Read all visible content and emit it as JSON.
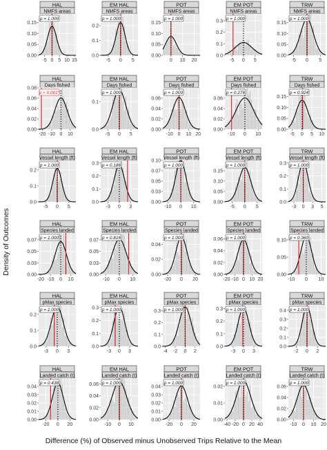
{
  "figure": {
    "ylabel": "Density of Outcomes",
    "xlabel": "Difference (%) of Observed minus Unobserved Trips Relative to the Mean"
  },
  "chart_data": [
    {
      "type": "histogram-density",
      "gear": "HAL",
      "variable": "NMFS areas",
      "pval": "p = 1.000",
      "xticks": [
        -5,
        0,
        5,
        10,
        15
      ],
      "yticks": [
        0.0,
        0.05,
        0.1,
        0.15
      ],
      "xlim": [
        -9,
        16
      ],
      "ylim": [
        0,
        0.19
      ],
      "mean": 0,
      "sd": 3.0,
      "observed": 0
    },
    {
      "type": "histogram-density",
      "gear": "EM HAL",
      "variable": "NMFS areas",
      "pval": "p = 1.000",
      "xticks": [
        -5,
        0,
        5
      ],
      "yticks": [
        0.0,
        0.1,
        0.2
      ],
      "xlim": [
        -8,
        7
      ],
      "ylim": [
        0,
        0.28
      ],
      "mean": 0,
      "sd": 1.8,
      "observed": 0
    },
    {
      "type": "histogram-density",
      "gear": "POT",
      "variable": "NMFS areas",
      "pval": "p = 1.000",
      "xticks": [
        0,
        10,
        20
      ],
      "yticks": [
        0.0,
        0.05,
        0.1,
        0.15
      ],
      "xlim": [
        -7,
        25
      ],
      "ylim": [
        0,
        0.19
      ],
      "mean": 0,
      "sd": 4.6,
      "observed": 0
    },
    {
      "type": "histogram-density",
      "gear": "EM POT",
      "variable": "NMFS areas",
      "pval": "p = 1.000",
      "xticks": [
        -5,
        0,
        5
      ],
      "yticks": [
        0.0,
        0.1,
        0.2,
        0.3
      ],
      "xlim": [
        -8,
        8
      ],
      "ylim": [
        0,
        0.36
      ],
      "mean": 0,
      "sd": 3.6,
      "observed": -4.5
    },
    {
      "type": "histogram-density",
      "gear": "TRW",
      "variable": "NMFS areas",
      "pval": "p = 1.000",
      "xticks": [
        -5,
        0,
        5
      ],
      "yticks": [
        0.0,
        0.05,
        0.1,
        0.15
      ],
      "xlim": [
        -7,
        7
      ],
      "ylim": [
        0,
        0.19
      ],
      "mean": 0,
      "sd": 2.4,
      "observed": 0
    },
    {
      "type": "histogram-density",
      "gear": "HAL",
      "variable": "Days fished",
      "pval": "p < 0.001*",
      "xticks": [
        -20,
        -10,
        0,
        10
      ],
      "yticks": [
        0.0,
        0.02,
        0.04,
        0.06,
        0.08
      ],
      "xlim": [
        -24,
        16
      ],
      "ylim": [
        0,
        0.08
      ],
      "mean": 0,
      "sd": 6.6,
      "observed": -21
    },
    {
      "type": "histogram-density",
      "gear": "EM HAL",
      "variable": "Days fished",
      "pval": "p = 1.000",
      "xticks": [
        -5,
        0,
        5
      ],
      "yticks": [
        0.0,
        0.1
      ],
      "xlim": [
        -8,
        8
      ],
      "ylim": [
        0,
        0.15
      ],
      "mean": 0,
      "sd": 2.8,
      "observed": 0
    },
    {
      "type": "histogram-density",
      "gear": "POT",
      "variable": "Days fished",
      "pval": "p = 1.000",
      "xticks": [
        -10,
        0,
        10,
        20
      ],
      "yticks": [
        0.0,
        0.02,
        0.04,
        0.06
      ],
      "xlim": [
        -17,
        22
      ],
      "ylim": [
        0,
        0.08
      ],
      "mean": 0,
      "sd": 6.5,
      "observed": 0
    },
    {
      "type": "histogram-density",
      "gear": "EM POT",
      "variable": "Days fished",
      "pval": "p = 0.276",
      "xticks": [
        -10,
        0,
        10
      ],
      "yticks": [
        0.0,
        0.02,
        0.04,
        0.06
      ],
      "xlim": [
        -15,
        13
      ],
      "ylim": [
        0,
        0.08
      ],
      "mean": 0,
      "sd": 6.6,
      "observed": -10
    },
    {
      "type": "histogram-density",
      "gear": "TRW",
      "variable": "Days fished",
      "pval": "p = 0.924",
      "xticks": [
        -5,
        0,
        5,
        10
      ],
      "yticks": [
        0.0,
        0.05,
        0.1,
        0.15
      ],
      "xlim": [
        -7,
        12
      ],
      "ylim": [
        0,
        0.19
      ],
      "mean": 0,
      "sd": 3.0,
      "observed": 0.3
    },
    {
      "type": "histogram-density",
      "gear": "HAL",
      "variable": "Vessel length (ft)",
      "pval": "p = 1.000",
      "xticks": [
        -5,
        0,
        5
      ],
      "yticks": [
        0.0,
        0.1,
        0.2
      ],
      "xlim": [
        -8,
        8
      ],
      "ylim": [
        0,
        0.26
      ],
      "mean": 0,
      "sd": 1.9,
      "observed": 0
    },
    {
      "type": "histogram-density",
      "gear": "EM HAL",
      "variable": "Vessel length (ft)",
      "pval": "p = 0.186",
      "xticks": [
        -3,
        0,
        3
      ],
      "yticks": [
        0.0,
        0.1,
        0.2,
        0.3
      ],
      "xlim": [
        -5,
        5
      ],
      "ylim": [
        0,
        0.32
      ],
      "mean": 0,
      "sd": 1.4,
      "observed": 2.2
    },
    {
      "type": "histogram-density",
      "gear": "POT",
      "variable": "Vessel length (ft)",
      "pval": "p = 1.000",
      "xticks": [
        -10,
        0,
        10
      ],
      "yticks": [
        0.0,
        0.025,
        0.05,
        0.075,
        0.1
      ],
      "xlim": [
        -14,
        15
      ],
      "ylim": [
        0,
        0.1
      ],
      "mean": 0,
      "sd": 4.0,
      "observed": 0
    },
    {
      "type": "histogram-density",
      "gear": "EM POT",
      "variable": "Vessel length (ft)",
      "pval": "p = 1.000",
      "xticks": [
        -5,
        0,
        5
      ],
      "yticks": [
        0.0,
        0.05,
        0.1,
        0.15
      ],
      "xlim": [
        -8,
        7
      ],
      "ylim": [
        0,
        0.2
      ],
      "mean": 0,
      "sd": 2.4,
      "observed": 0
    },
    {
      "type": "histogram-density",
      "gear": "TRW",
      "variable": "Vessel length (ft)",
      "pval": "p = 1.000",
      "xticks": [
        -2.5,
        0.0,
        2.5,
        5.0
      ],
      "yticks": [
        0.0,
        0.1,
        0.2,
        0.3
      ],
      "xlim": [
        -4,
        6
      ],
      "ylim": [
        0,
        0.32
      ],
      "mean": 0,
      "sd": 1.3,
      "observed": 0
    },
    {
      "type": "histogram-density",
      "gear": "HAL",
      "variable": "Species landed",
      "pval": "p = 1.000",
      "xticks": [
        -20,
        -10,
        0,
        10
      ],
      "yticks": [
        0.0,
        0.025,
        0.05,
        0.075
      ],
      "xlim": [
        -22,
        15
      ],
      "ylim": [
        0,
        0.09
      ],
      "mean": 0,
      "sd": 5.6,
      "observed": 5
    },
    {
      "type": "histogram-density",
      "gear": "EM HAL",
      "variable": "Species landed",
      "pval": "p = 0.816",
      "xticks": [
        -10,
        0,
        10
      ],
      "yticks": [
        0.0,
        0.025,
        0.05,
        0.075
      ],
      "xlim": [
        -14,
        14
      ],
      "ylim": [
        0,
        0.09
      ],
      "mean": 0,
      "sd": 5.2,
      "observed": 7
    },
    {
      "type": "histogram-density",
      "gear": "POT",
      "variable": "Species landed",
      "pval": "p = 1.000",
      "xticks": [
        -20,
        0,
        20
      ],
      "yticks": [
        0.0,
        0.02,
        0.04
      ],
      "xlim": [
        -27,
        27
      ],
      "ylim": [
        0,
        0.055
      ],
      "mean": 0,
      "sd": 8.0,
      "observed": 0
    },
    {
      "type": "histogram-density",
      "gear": "EM POT",
      "variable": "Species landed",
      "pval": "p = 1.000",
      "xticks": [
        -20,
        -10,
        0,
        10,
        20
      ],
      "yticks": [
        0.0,
        0.02,
        0.04,
        0.06
      ],
      "xlim": [
        -22,
        22
      ],
      "ylim": [
        0,
        0.07
      ],
      "mean": 0,
      "sd": 6.8,
      "observed": 0
    },
    {
      "type": "histogram-density",
      "gear": "TRW",
      "variable": "Species landed",
      "pval": "p = 0.360",
      "xticks": [
        -10,
        0,
        10
      ],
      "yticks": [
        0.0,
        0.05,
        0.1
      ],
      "xlim": [
        -12,
        13
      ],
      "ylim": [
        0,
        0.12
      ],
      "mean": 0,
      "sd": 3.6,
      "observed": -5
    },
    {
      "type": "histogram-density",
      "gear": "HAL",
      "variable": "pMax species",
      "pval": "p = 1.000",
      "xticks": [
        -3,
        0,
        3
      ],
      "yticks": [
        0.0,
        0.1,
        0.2
      ],
      "xlim": [
        -5,
        5
      ],
      "ylim": [
        0,
        0.26
      ],
      "mean": 0,
      "sd": 1.6,
      "observed": -0.8
    },
    {
      "type": "histogram-density",
      "gear": "EM HAL",
      "variable": "pMax species",
      "pval": "p = 1.000",
      "xticks": [
        -2.5,
        0.0,
        2.5
      ],
      "yticks": [
        0.0,
        0.1,
        0.2,
        0.3
      ],
      "xlim": [
        -4.5,
        4.5
      ],
      "ylim": [
        0,
        0.32
      ],
      "mean": 0,
      "sd": 1.3,
      "observed": -1
    },
    {
      "type": "histogram-density",
      "gear": "POT",
      "variable": "pMax species",
      "pval": "p = 1.000",
      "xticks": [
        -4,
        -2,
        0,
        2
      ],
      "yticks": [
        0.0,
        0.1,
        0.2,
        0.3
      ],
      "xlim": [
        -4.5,
        3
      ],
      "ylim": [
        0,
        0.35
      ],
      "mean": 0,
      "sd": 1.2,
      "observed": 0
    },
    {
      "type": "histogram-density",
      "gear": "EM POT",
      "variable": "pMax species",
      "pval": "p = 1.000",
      "xticks": [
        -2.5,
        0.0,
        2.5
      ],
      "yticks": [
        0.0,
        0.1,
        0.2,
        0.3
      ],
      "xlim": [
        -4.5,
        4.5
      ],
      "ylim": [
        0,
        0.33
      ],
      "mean": 0,
      "sd": 1.3,
      "observed": -0.2
    },
    {
      "type": "histogram-density",
      "gear": "TRW",
      "variable": "pMax species",
      "pval": "p = 1.000",
      "xticks": [
        -2,
        0,
        2
      ],
      "yticks": [
        0.0,
        0.1,
        0.2,
        0.3,
        0.4
      ],
      "xlim": [
        -3.5,
        3.5
      ],
      "ylim": [
        0,
        0.46
      ],
      "mean": 0,
      "sd": 0.9,
      "observed": 0
    },
    {
      "type": "histogram-density",
      "gear": "HAL",
      "variable": "Landed catch (t)",
      "pval": "p = 0.438",
      "xticks": [
        -20,
        0,
        20
      ],
      "yticks": [
        0.0,
        0.01,
        0.02,
        0.03,
        0.04
      ],
      "xlim": [
        -32,
        30
      ],
      "ylim": [
        0,
        0.05
      ],
      "mean": 0,
      "sd": 9.0,
      "observed": -12
    },
    {
      "type": "histogram-density",
      "gear": "EM HAL",
      "variable": "Landed catch (t)",
      "pval": "p = 1.000",
      "xticks": [
        -10,
        0,
        10
      ],
      "yticks": [
        0.0,
        0.02,
        0.04,
        0.06
      ],
      "xlim": [
        -16,
        16
      ],
      "ylim": [
        0,
        0.07
      ],
      "mean": 0,
      "sd": 6.2,
      "observed": 0
    },
    {
      "type": "histogram-density",
      "gear": "POT",
      "variable": "Landed catch (t)",
      "pval": "p = 1.000",
      "xticks": [
        -20,
        0,
        20
      ],
      "yticks": [
        0.0,
        0.01,
        0.02,
        0.03,
        0.04
      ],
      "xlim": [
        -30,
        30
      ],
      "ylim": [
        0,
        0.05
      ],
      "mean": 0,
      "sd": 9.8,
      "observed": 0
    },
    {
      "type": "histogram-density",
      "gear": "EM POT",
      "variable": "Landed catch (t)",
      "pval": "p = 1.000",
      "xticks": [
        -40,
        -20,
        0,
        20,
        40
      ],
      "yticks": [
        0.0,
        0.01,
        0.02
      ],
      "xlim": [
        -45,
        45
      ],
      "ylim": [
        0,
        0.025
      ],
      "mean": 0,
      "sd": 17,
      "observed": 0
    },
    {
      "type": "histogram-density",
      "gear": "TRW",
      "variable": "Landed catch (t)",
      "pval": "p = 1.000",
      "xticks": [
        -10,
        0,
        10,
        20
      ],
      "yticks": [
        0.0,
        0.02,
        0.04,
        0.06
      ],
      "xlim": [
        -15,
        22
      ],
      "ylim": [
        0,
        0.075
      ],
      "mean": 0,
      "sd": 6.4,
      "observed": 0
    }
  ]
}
